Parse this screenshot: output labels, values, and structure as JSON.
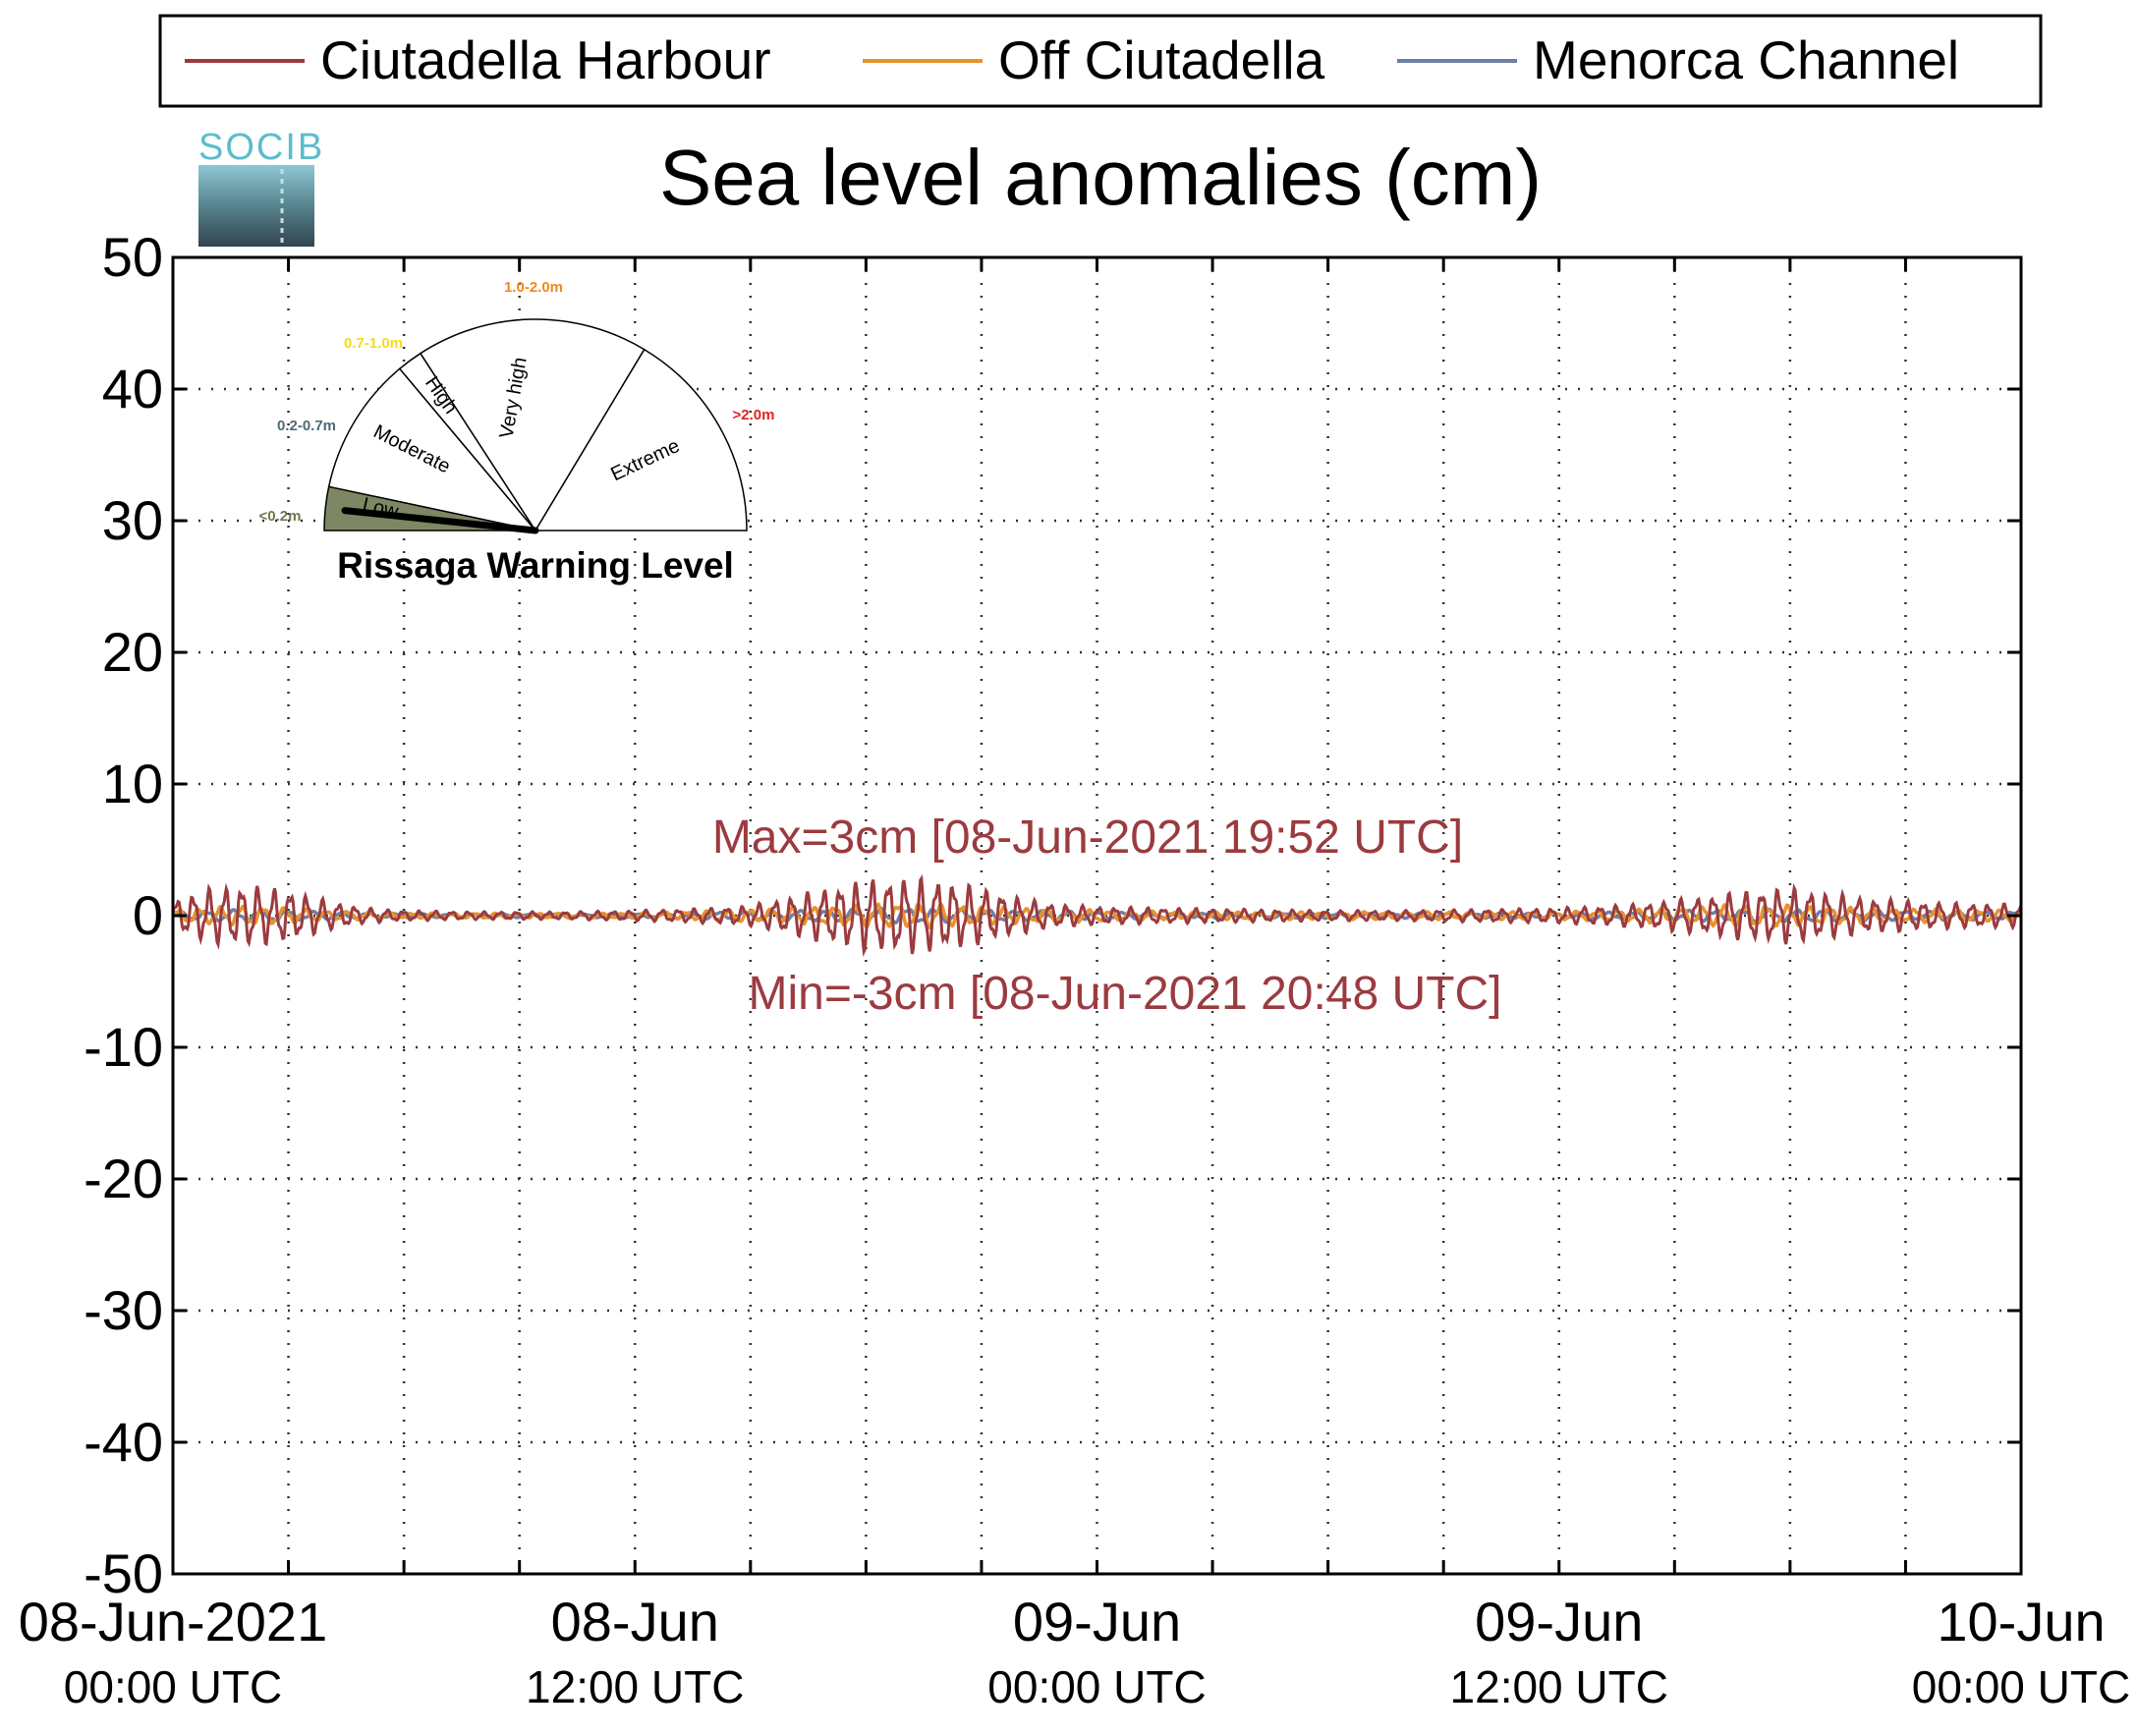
{
  "chart_data": {
    "type": "line",
    "title": "Sea level anomalies (cm)",
    "xlabel": "",
    "ylabel": "",
    "ylim": [
      -50,
      50
    ],
    "yticks": [
      50,
      40,
      30,
      20,
      10,
      0,
      -10,
      -20,
      -30,
      -40,
      -50
    ],
    "xlim_hours": [
      0,
      48
    ],
    "xticks": [
      {
        "hours": 0,
        "line1": "08-Jun-2021",
        "line2": "00:00 UTC"
      },
      {
        "hours": 12,
        "line1": "08-Jun",
        "line2": "12:00 UTC"
      },
      {
        "hours": 24,
        "line1": "09-Jun",
        "line2": "00:00 UTC"
      },
      {
        "hours": 36,
        "line1": "09-Jun",
        "line2": "12:00 UTC"
      },
      {
        "hours": 48,
        "line1": "10-Jun",
        "line2": "00:00 UTC"
      }
    ],
    "grid": true,
    "legend_position": "top",
    "series": [
      {
        "name": "Ciutadella Harbour",
        "color": "#9b3b3f",
        "envelope": [
          [
            0,
            1.2
          ],
          [
            1,
            2.2
          ],
          [
            2,
            2.4
          ],
          [
            3,
            2.0
          ],
          [
            4,
            1.2
          ],
          [
            5,
            0.6
          ],
          [
            6,
            0.4
          ],
          [
            8,
            0.3
          ],
          [
            10,
            0.3
          ],
          [
            12,
            0.4
          ],
          [
            14,
            0.6
          ],
          [
            15,
            0.8
          ],
          [
            16,
            1.5
          ],
          [
            17,
            2.2
          ],
          [
            18,
            2.8
          ],
          [
            19,
            3.0
          ],
          [
            20,
            2.8
          ],
          [
            21,
            2.2
          ],
          [
            22,
            1.4
          ],
          [
            23,
            0.9
          ],
          [
            24,
            0.7
          ],
          [
            26,
            0.6
          ],
          [
            28,
            0.5
          ],
          [
            30,
            0.4
          ],
          [
            32,
            0.4
          ],
          [
            34,
            0.5
          ],
          [
            36,
            0.6
          ],
          [
            38,
            0.9
          ],
          [
            40,
            1.6
          ],
          [
            41,
            2.0
          ],
          [
            42,
            2.2
          ],
          [
            43,
            1.8
          ],
          [
            44,
            1.4
          ],
          [
            46,
            1.0
          ],
          [
            48,
            0.9
          ]
        ]
      },
      {
        "name": "Off Ciutadella",
        "color": "#e8932c",
        "envelope": [
          [
            0,
            0.5
          ],
          [
            2,
            0.8
          ],
          [
            4,
            0.4
          ],
          [
            6,
            0.2
          ],
          [
            12,
            0.2
          ],
          [
            16,
            0.6
          ],
          [
            19,
            1.0
          ],
          [
            22,
            0.6
          ],
          [
            26,
            0.3
          ],
          [
            36,
            0.3
          ],
          [
            38,
            0.5
          ],
          [
            41,
            0.9
          ],
          [
            44,
            0.6
          ],
          [
            48,
            0.4
          ]
        ]
      },
      {
        "name": "Menorca Channel",
        "color": "#6f7fa8",
        "envelope": [
          [
            0,
            0.3
          ],
          [
            2,
            0.5
          ],
          [
            4,
            0.3
          ],
          [
            6,
            0.15
          ],
          [
            12,
            0.15
          ],
          [
            16,
            0.4
          ],
          [
            19,
            0.6
          ],
          [
            22,
            0.4
          ],
          [
            26,
            0.2
          ],
          [
            36,
            0.2
          ],
          [
            41,
            0.5
          ],
          [
            48,
            0.3
          ]
        ]
      }
    ],
    "annotations": {
      "max": "Max=3cm [08-Jun-2021 19:52 UTC]",
      "min": "Min=-3cm [08-Jun-2021 20:48 UTC]",
      "color": "#9b3b3f"
    }
  },
  "logo": {
    "text": "SOCIB"
  },
  "gauge": {
    "title": "Rissaga Warning Level",
    "current_level": "Low",
    "sectors": [
      {
        "label": "Low",
        "range": "<0.2m",
        "range_color": "#6b7a4e",
        "fill": "#7d8763"
      },
      {
        "label": "Moderate",
        "range": "0.2-0.7m",
        "range_color": "#4f6878",
        "fill": "#ffffff"
      },
      {
        "label": "High",
        "range": "0.7-1.0m",
        "range_color": "#f2dc1f",
        "fill": "#ffffff"
      },
      {
        "label": "Very high",
        "range": "1.0-2.0m",
        "range_color": "#f08a1c",
        "fill": "#ffffff"
      },
      {
        "label": "Extreme",
        "range": ">2.0m",
        "range_color": "#e5231b",
        "fill": "#ffffff"
      }
    ]
  }
}
